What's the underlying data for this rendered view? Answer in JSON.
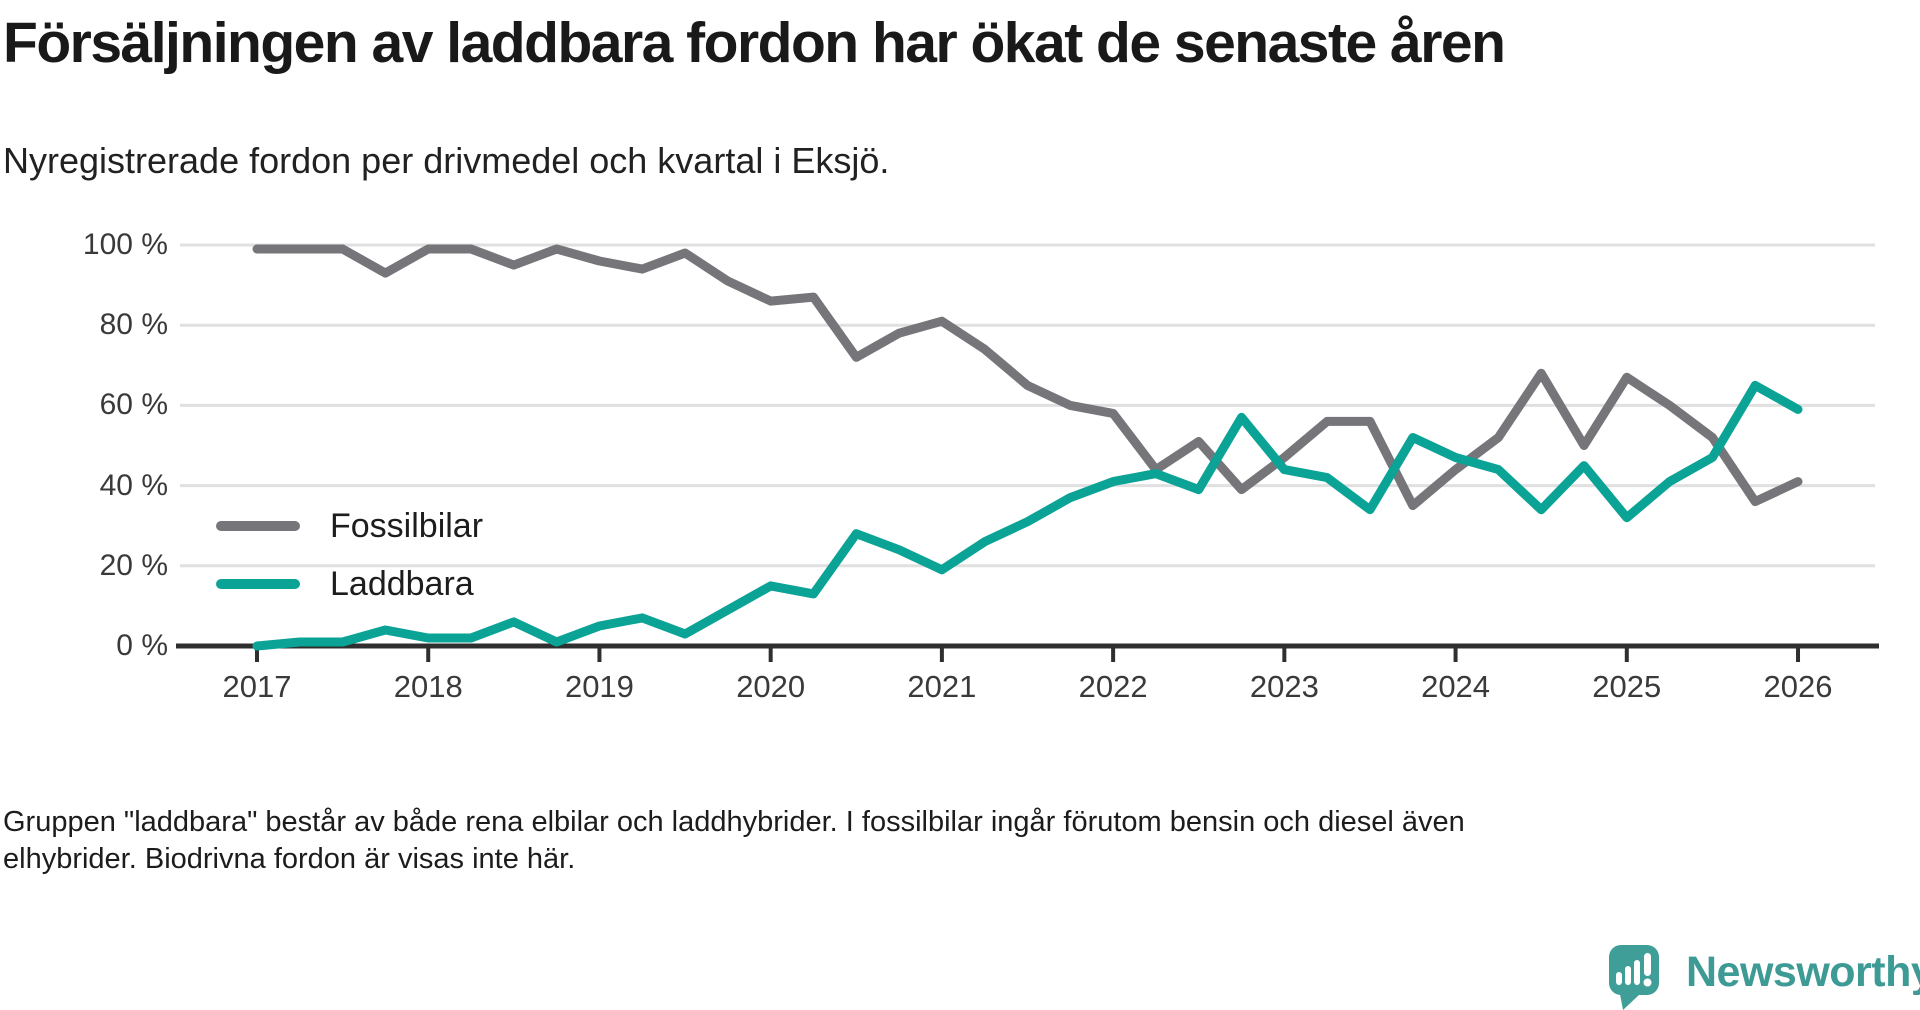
{
  "header": {
    "title": "Försäljningen av laddbara fordon har ökat de senaste åren",
    "subtitle": "Nyregistrerade fordon per drivmedel och kvartal i Eksjö."
  },
  "legend": [
    {
      "label": "Fossilbilar",
      "color": "#75757a"
    },
    {
      "label": "Laddbara",
      "color": "#0aa396"
    }
  ],
  "chart_data": {
    "type": "line",
    "title": "Försäljningen av laddbara fordon har ökat de senaste åren",
    "subtitle": "Nyregistrerade fordon per drivmedel och kvartal i Eksjö.",
    "x_unit": "quarter",
    "x_start": "2017 Q1",
    "x_end": "2026 Q1",
    "x_tick_labels": [
      "2017",
      "2018",
      "2019",
      "2020",
      "2021",
      "2022",
      "2023",
      "2024",
      "2025",
      "2026"
    ],
    "y_tick_labels": [
      "0 %",
      "20 %",
      "40 %",
      "60 %",
      "80 %",
      "100 %"
    ],
    "y_tick_values": [
      0,
      20,
      40,
      60,
      80,
      100
    ],
    "ylim": [
      0,
      100
    ],
    "grid": "horizontal",
    "legend_position": "inside-left",
    "series": [
      {
        "name": "Fossilbilar",
        "color": "#75757a",
        "values": [
          99,
          99,
          99,
          93,
          99,
          99,
          95,
          99,
          96,
          94,
          98,
          91,
          86,
          87,
          72,
          78,
          81,
          74,
          65,
          60,
          58,
          44,
          51,
          39,
          47,
          56,
          56,
          35,
          44,
          52,
          68,
          50,
          67,
          60,
          52,
          36,
          41
        ]
      },
      {
        "name": "Laddbara",
        "color": "#0aa396",
        "values": [
          0,
          1,
          1,
          4,
          2,
          2,
          6,
          1,
          5,
          7,
          3,
          9,
          15,
          13,
          28,
          24,
          19,
          26,
          31,
          37,
          41,
          43,
          39,
          57,
          44,
          42,
          34,
          52,
          47,
          44,
          34,
          45,
          32,
          41,
          47,
          65,
          59
        ]
      }
    ]
  },
  "footer": {
    "note": "Gruppen \"laddbara\" består av både rena elbilar och laddhybrider. I fossilbilar ingår förutom bensin och diesel även elhybrider. Biodrivna fordon är visas inte här."
  },
  "branding": {
    "wordmark": "Newsworthy",
    "logo_color": "#3f9e97",
    "wordmark_color": "#3d9a94",
    "icon": "bar-chart-exclamation-speech-bubble"
  },
  "colors": {
    "gridline": "#e0e0e0",
    "axis": "#2f2f2f",
    "text": "#191919"
  }
}
